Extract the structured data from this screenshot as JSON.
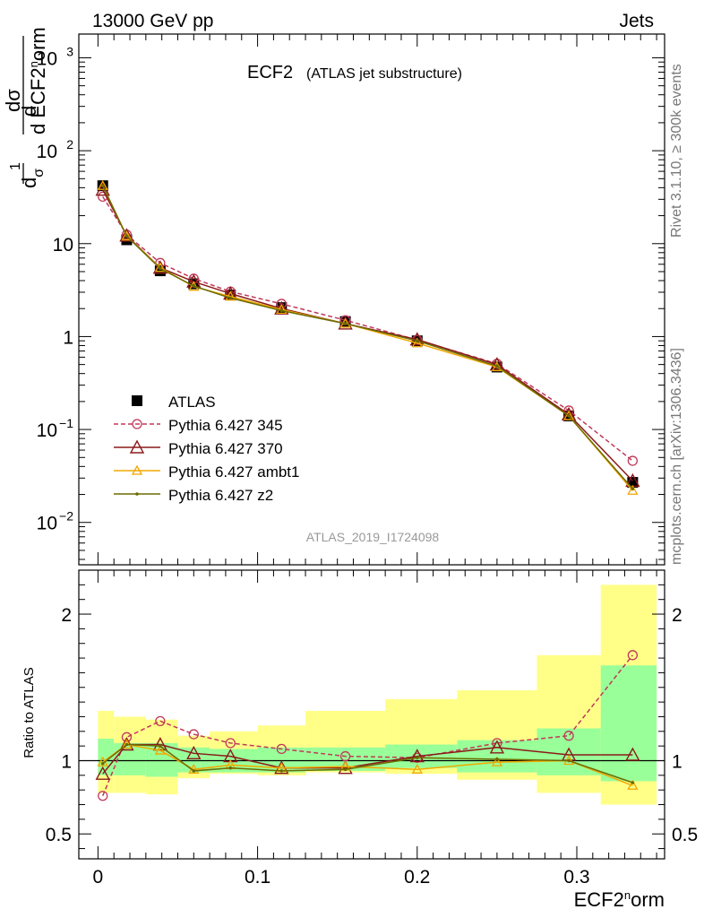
{
  "header": {
    "left": "13000 GeV pp",
    "right": "Jets",
    "side_top": "Rivet 3.1.10, ≥ 300k events",
    "side_bottom": "mcplots.cern.ch [arXiv:1306.3436]"
  },
  "chart_data": [
    {
      "type": "line",
      "panel": "main",
      "title": "ECF2",
      "subtitle": "(ATLAS jet substructure)",
      "watermark": "ATLAS_2019_I1724098",
      "xlabel": "ECF2^norm",
      "ylabel": "1/σ dσ/d ECF2^norm",
      "xlim": [
        -0.012,
        0.355
      ],
      "ylim": [
        0.0035,
        1800
      ],
      "yscale": "log",
      "legend_position": "lower-left",
      "x": [
        0.003,
        0.018,
        0.039,
        0.06,
        0.083,
        0.115,
        0.155,
        0.2,
        0.25,
        0.295,
        0.335
      ],
      "series": [
        {
          "name": "ATLAS",
          "color": "#000000",
          "marker": "square",
          "style": "points",
          "values": [
            42,
            11,
            5.1,
            3.7,
            2.8,
            2.05,
            1.45,
            0.9,
            0.47,
            0.14,
            0.027
          ]
        },
        {
          "name": "Pythia 6.427 345",
          "color": "#c0395a",
          "marker": "circle",
          "style": "dashed",
          "values": [
            32,
            12.5,
            6.2,
            4.2,
            3.05,
            2.25,
            1.5,
            0.92,
            0.51,
            0.16,
            0.046
          ]
        },
        {
          "name": "Pythia 6.427 370",
          "color": "#8b1a1a",
          "marker": "triangle",
          "style": "solid",
          "values": [
            38,
            12.2,
            5.5,
            3.9,
            2.9,
            2.0,
            1.38,
            0.93,
            0.5,
            0.145,
            0.028
          ]
        },
        {
          "name": "Pythia 6.427 ambt1",
          "color": "#f0a800",
          "marker": "triangle-small",
          "style": "solid",
          "values": [
            42,
            12.0,
            5.5,
            3.45,
            2.7,
            1.95,
            1.38,
            0.85,
            0.47,
            0.14,
            0.022
          ]
        },
        {
          "name": "Pythia 6.427 z2",
          "color": "#6b6b00",
          "marker": "dot",
          "style": "solid",
          "values": [
            42,
            12.0,
            5.4,
            3.5,
            2.6,
            1.9,
            1.38,
            0.9,
            0.48,
            0.14,
            0.023
          ]
        }
      ]
    },
    {
      "type": "line",
      "panel": "ratio",
      "ylabel": "Ratio to ATLAS",
      "xlabel": "ECF2^norm",
      "xlim": [
        -0.012,
        0.355
      ],
      "ylim": [
        0.33,
        2.3
      ],
      "ticks_x": [
        "0",
        "0.1",
        "0.2",
        "0.3"
      ],
      "ticks_y": [
        "0.5",
        "1",
        "2"
      ],
      "x": [
        0.003,
        0.018,
        0.039,
        0.06,
        0.083,
        0.115,
        0.155,
        0.2,
        0.25,
        0.295,
        0.335
      ],
      "bins": [
        [
          0.0,
          0.01
        ],
        [
          0.01,
          0.03
        ],
        [
          0.03,
          0.05
        ],
        [
          0.05,
          0.07
        ],
        [
          0.07,
          0.1
        ],
        [
          0.1,
          0.13
        ],
        [
          0.13,
          0.18
        ],
        [
          0.18,
          0.225
        ],
        [
          0.225,
          0.275
        ],
        [
          0.275,
          0.315
        ],
        [
          0.315,
          0.35
        ]
      ],
      "band_inner": [
        [
          0.9,
          1.15
        ],
        [
          0.9,
          1.12
        ],
        [
          0.89,
          1.12
        ],
        [
          0.92,
          1.09
        ],
        [
          0.92,
          1.08
        ],
        [
          0.92,
          1.09
        ],
        [
          0.93,
          1.09
        ],
        [
          0.95,
          1.11
        ],
        [
          0.92,
          1.14
        ],
        [
          0.9,
          1.22
        ],
        [
          0.86,
          1.65
        ]
      ],
      "band_outer": [
        [
          0.78,
          1.34
        ],
        [
          0.78,
          1.3
        ],
        [
          0.77,
          1.28
        ],
        [
          0.88,
          1.17
        ],
        [
          0.91,
          1.2
        ],
        [
          0.9,
          1.24
        ],
        [
          0.92,
          1.34
        ],
        [
          0.91,
          1.42
        ],
        [
          0.87,
          1.48
        ],
        [
          0.78,
          1.72
        ],
        [
          0.7,
          2.2
        ]
      ],
      "series": [
        {
          "name": "Pythia 6.427 345",
          "values": [
            0.76,
            1.16,
            1.27,
            1.18,
            1.12,
            1.08,
            1.03,
            1.02,
            1.12,
            1.17,
            1.72
          ]
        },
        {
          "name": "Pythia 6.427 370",
          "values": [
            0.91,
            1.11,
            1.11,
            1.05,
            1.03,
            0.95,
            0.95,
            1.03,
            1.09,
            1.04,
            1.04
          ]
        },
        {
          "name": "Pythia 6.427 ambt1",
          "values": [
            0.99,
            1.11,
            1.07,
            0.94,
            0.97,
            0.95,
            0.96,
            0.94,
            0.99,
            1.0,
            0.83
          ]
        },
        {
          "name": "Pythia 6.427 z2",
          "values": [
            0.98,
            1.11,
            1.1,
            0.93,
            0.95,
            0.93,
            0.94,
            1.02,
            1.01,
            1.0,
            0.85
          ]
        }
      ]
    }
  ]
}
